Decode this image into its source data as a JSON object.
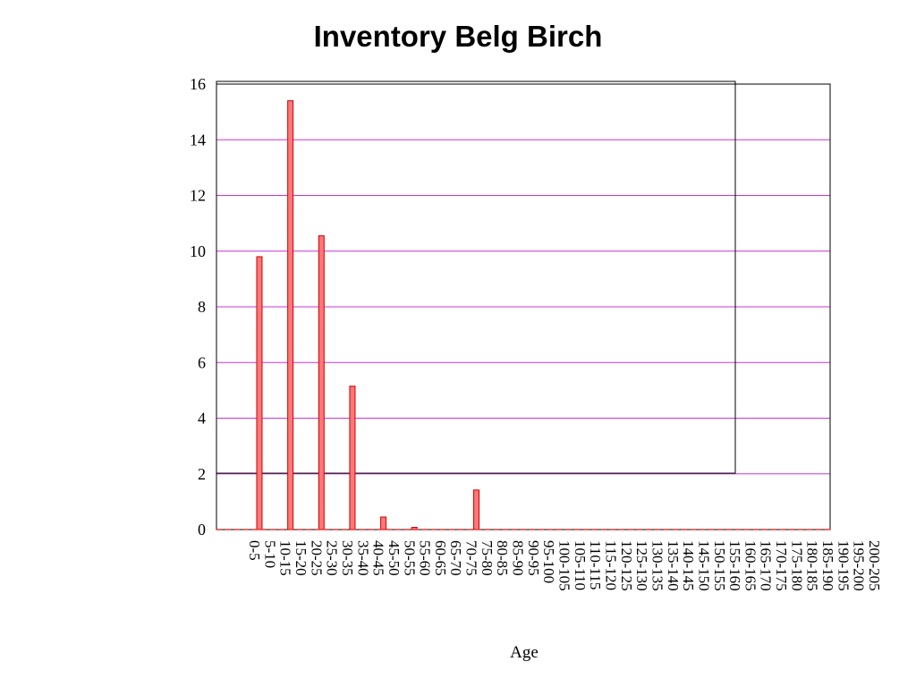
{
  "chart_data": {
    "type": "bar",
    "title": "Inventory Belg Birch",
    "xlabel": "Age",
    "ylabel": "",
    "ylim": [
      0,
      16
    ],
    "yticks": [
      0,
      2,
      4,
      6,
      8,
      10,
      12,
      14,
      16
    ],
    "grid": true,
    "legend": "none",
    "categories": [
      "0-5",
      "5-10",
      "10-15",
      "15-20",
      "20-25",
      "25-30",
      "30-35",
      "35-40",
      "40-45",
      "45-50",
      "50-55",
      "55-60",
      "60-65",
      "65-70",
      "70-75",
      "75-80",
      "80-85",
      "85-90",
      "90-95",
      "95-100",
      "100-105",
      "105-110",
      "110-115",
      "115-120",
      "120-125",
      "125-130",
      "130-135",
      "135-140",
      "140-145",
      "145-150",
      "150-155",
      "155-160",
      "160-165",
      "165-170",
      "170-175",
      "175-180",
      "180-185",
      "185-190",
      "190-195",
      "195-200",
      "200-205"
    ],
    "values": [
      9.8,
      0,
      15.4,
      0,
      10.55,
      0,
      5.15,
      0,
      0.45,
      0,
      0.08,
      0,
      0,
      0,
      1.42,
      0,
      0,
      0,
      0,
      0,
      0,
      0,
      0,
      0,
      0,
      0,
      0,
      0,
      0,
      0,
      0,
      0,
      0,
      0,
      0,
      0,
      0,
      0,
      0,
      0,
      0
    ],
    "colors": {
      "bar_fill": "#ff7777",
      "bar_stroke": "#cc0000",
      "grid": "#cc33dd",
      "baseline": "#ff3333"
    }
  }
}
